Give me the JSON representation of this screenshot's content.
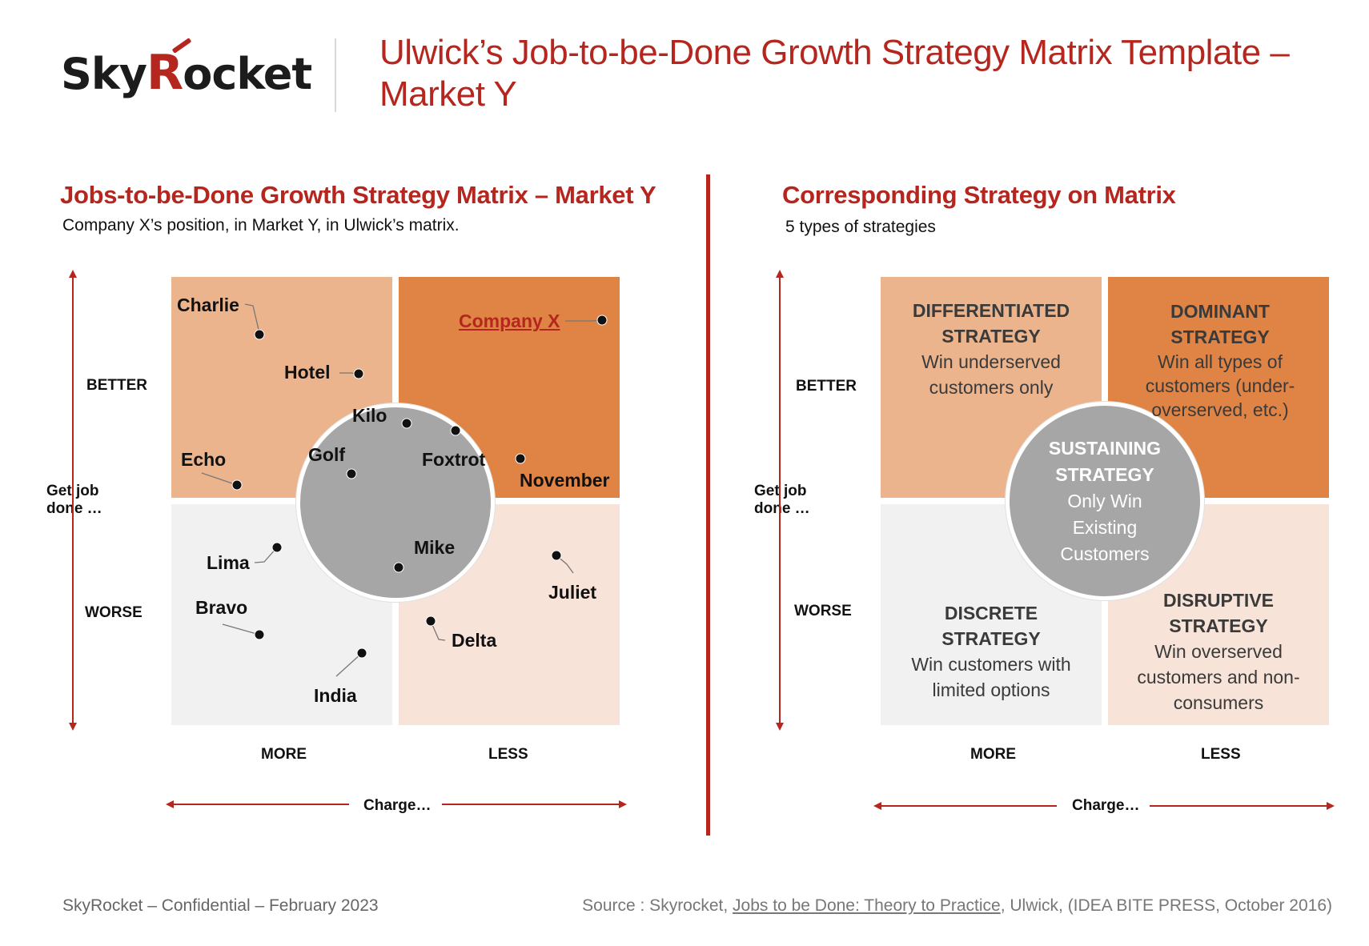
{
  "header": {
    "logo_text_pre": "Sky",
    "logo_text_r": "R",
    "logo_text_post": "ocket",
    "title": "Ulwick’s Job-to-be-Done Growth Strategy Matrix Template – Market Y"
  },
  "left_panel": {
    "title": "Jobs-to-be-Done Growth Strategy Matrix – Market Y",
    "subtitle": "Company X’s position, in Market Y, in Ulwick’s matrix.",
    "y_top": "BETTER",
    "y_bottom": "WORSE",
    "y_axis": "Get job done …",
    "x_left": "MORE",
    "x_right": "LESS",
    "x_axis": "Charge…",
    "points": [
      {
        "name": "Charlie"
      },
      {
        "name": "Hotel"
      },
      {
        "name": "Company X",
        "highlight": true
      },
      {
        "name": "Kilo"
      },
      {
        "name": "Golf"
      },
      {
        "name": "Foxtrot"
      },
      {
        "name": "Echo"
      },
      {
        "name": "November"
      },
      {
        "name": "Lima"
      },
      {
        "name": "Mike"
      },
      {
        "name": "Juliet"
      },
      {
        "name": "Bravo"
      },
      {
        "name": "Delta"
      },
      {
        "name": "India"
      }
    ]
  },
  "right_panel": {
    "title": "Corresponding Strategy on Matrix",
    "subtitle": "5 types of strategies",
    "y_top": "BETTER",
    "y_bottom": "WORSE",
    "y_axis": "Get job done …",
    "x_left": "MORE",
    "x_right": "LESS",
    "x_axis": "Charge…",
    "strategies": {
      "differentiated": {
        "title": "DIFFERENTIATED STRATEGY",
        "desc": "Win underserved customers only"
      },
      "dominant": {
        "title": "DOMINANT STRATEGY",
        "desc": "Win all types of customers (under-overserved, etc.)"
      },
      "sustaining": {
        "title": "SUSTAINING STRATEGY",
        "desc": "Only Win Existing Customers"
      },
      "discrete": {
        "title": "DISCRETE STRATEGY",
        "desc": "Win customers with limited options"
      },
      "disruptive": {
        "title": "DISRUPTIVE STRATEGY",
        "desc": "Win overserved customers and non-consumers"
      }
    }
  },
  "footer": {
    "left": "SkyRocket – Confidential – February 2023",
    "source_prefix": "Source : Skyrocket, ",
    "source_book": "Jobs to be Done: Theory to Practice",
    "source_suffix": ", Ulwick, (IDEA BITE PRESS, October 2016)"
  },
  "colors": {
    "accent": "#b5261e",
    "differentiated": "#ebb48c",
    "dominant": "#e08446",
    "discrete": "#f1f1f1",
    "disruptive": "#f7e3d8",
    "sustaining": "#a6a6a6"
  }
}
